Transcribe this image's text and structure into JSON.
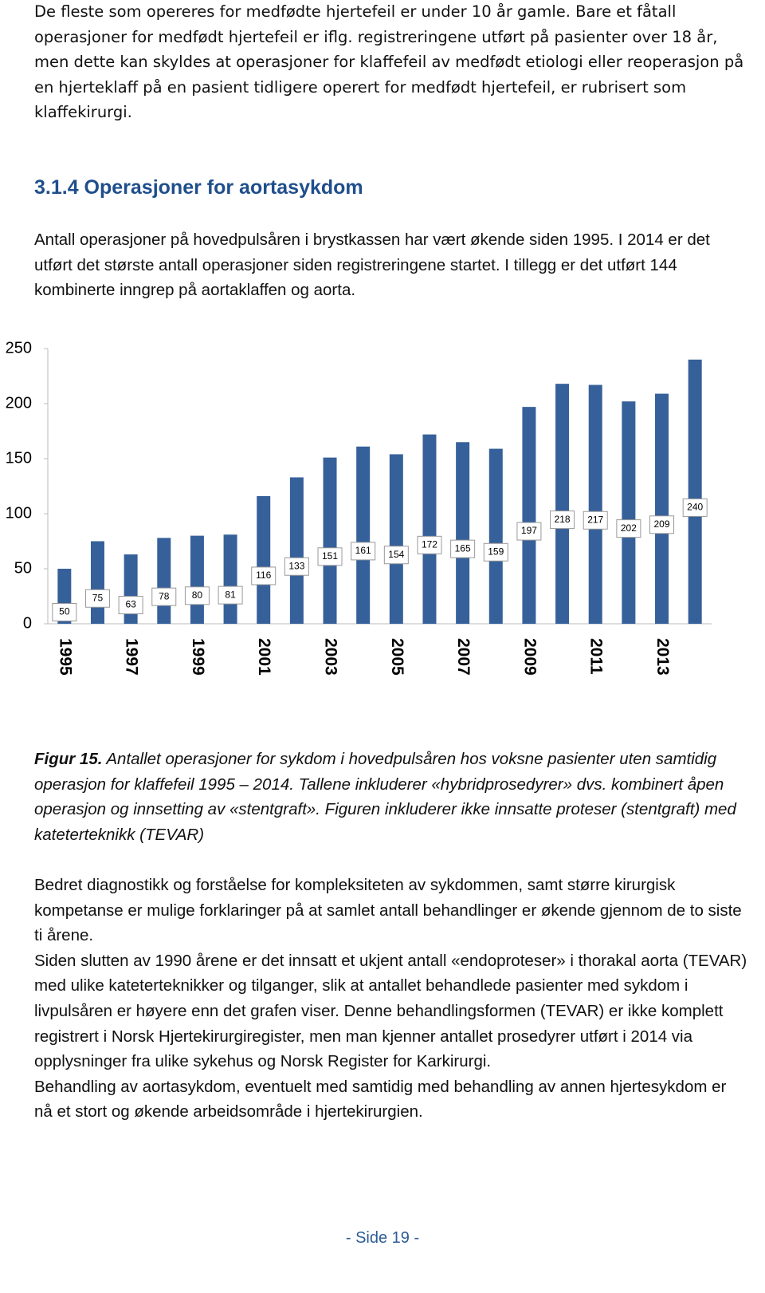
{
  "intro": "De fleste som opereres for medfødte hjertefeil er under 10 år gamle. Bare et fåtall operasjoner for medfødt hjertefeil er iflg. registreringene utført på pasienter over 18 år, men dette kan skyldes at operasjoner for klaffefeil av medfødt etiologi eller reoperasjon på en hjerteklaff på en pasient tidligere operert for medfødt hjertefeil, er rubrisert som klaffekirurgi.",
  "heading": "3.1.4 Operasjoner for aortasykdom",
  "paragraph": "Antall operasjoner på hovedpulsåren i brystkassen har vært økende siden 1995. I 2014 er det utført det største antall operasjoner siden registreringene startet. I tillegg er det utført 144 kombinerte inngrep på aortaklaffen og aorta.",
  "chart_data": {
    "type": "bar",
    "categories": [
      "1995",
      null,
      "1997",
      null,
      "1999",
      null,
      "2001",
      null,
      "2003",
      null,
      "2005",
      null,
      "2007",
      null,
      "2009",
      null,
      "2011",
      null,
      "2013",
      null
    ],
    "values": [
      50,
      75,
      63,
      78,
      80,
      81,
      116,
      133,
      151,
      161,
      154,
      172,
      165,
      159,
      197,
      218,
      217,
      202,
      209,
      240
    ],
    "color": "#36609a",
    "ylim": [
      0,
      250
    ],
    "yticks": [
      0,
      50,
      100,
      150,
      200,
      250
    ]
  },
  "caption": {
    "label": "Figur 15.",
    "text": "Antallet operasjoner for sykdom i hovedpulsåren hos voksne pasienter uten samtidig operasjon for klaffefeil 1995 – 2014. Tallene inkluderer «hybridprosedyrer» dvs. kombinert åpen operasjon og innsetting av «stentgraft». Figuren inkluderer ikke innsatte proteser (stentgraft) med kateterteknikk (TEVAR)"
  },
  "body": [
    "Bedret diagnostikk og forståelse for kompleksiteten av sykdommen, samt større kirurgisk kompetanse er mulige forklaringer på at samlet antall behandlinger er økende gjennom de to siste ti årene.",
    "Siden slutten av 1990 årene er det innsatt et ukjent antall «endoproteser» i thorakal aorta (TEVAR) med ulike kateterteknikker og tilganger, slik at antallet behandlede pasienter med sykdom i livpulsåren er høyere enn det grafen viser.  Denne behandlingsformen (TEVAR) er ikke komplett registrert i Norsk Hjertekirurgiregister, men man kjenner antallet prosedyrer utført i 2014 via opplysninger fra ulike sykehus og Norsk Register for Karkirurgi.",
    "Behandling av aortasykdom, eventuelt med samtidig med behandling av annen hjertesykdom er nå et stort og økende arbeidsområde i hjertekirurgien."
  ],
  "footer": "- Side 19 -"
}
